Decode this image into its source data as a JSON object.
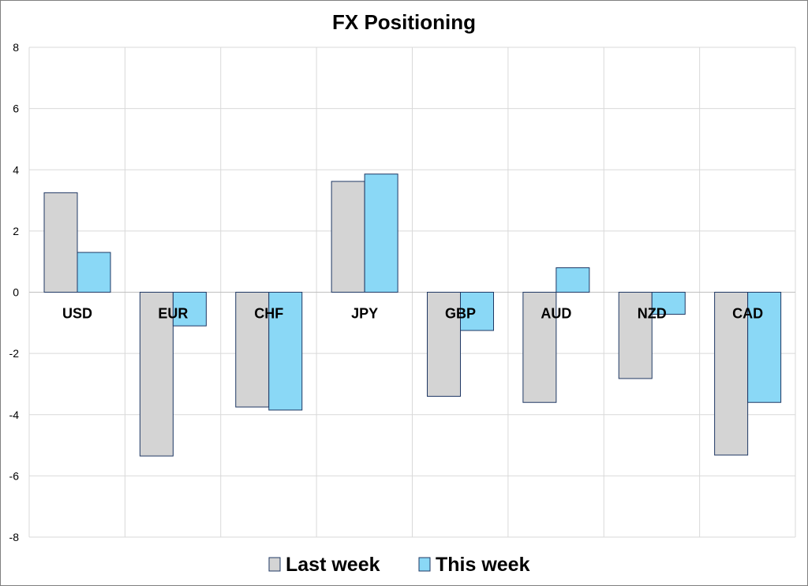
{
  "chart_data": {
    "type": "bar",
    "title": "FX Positioning",
    "xlabel": "",
    "ylabel": "",
    "categories": [
      "USD",
      "EUR",
      "CHF",
      "JPY",
      "GBP",
      "AUD",
      "NZD",
      "CAD"
    ],
    "ylim": [
      -8,
      8
    ],
    "yticks": [
      8,
      6,
      4,
      2,
      0,
      -2,
      -4,
      -6,
      -8
    ],
    "grid": true,
    "legend_position": "bottom",
    "series": [
      {
        "name": "Last week",
        "values": [
          3.25,
          -5.35,
          -3.75,
          3.62,
          -3.4,
          -3.6,
          -2.82,
          -5.32
        ],
        "color": "#d4d4d4"
      },
      {
        "name": "This week",
        "values": [
          1.3,
          -1.1,
          -3.85,
          3.86,
          -1.25,
          0.8,
          -0.72,
          -3.6
        ],
        "color": "#8ad8f6"
      }
    ],
    "bar_outline_color": "#1f3864"
  }
}
